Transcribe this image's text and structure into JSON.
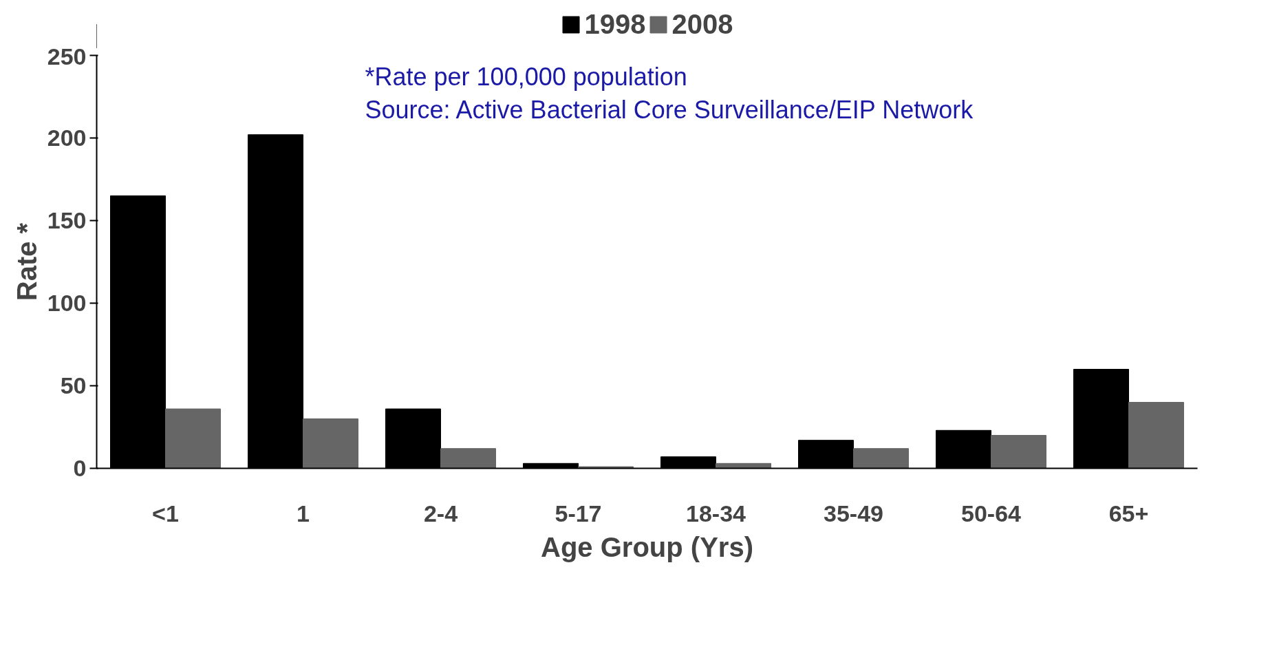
{
  "chart_data": {
    "type": "bar",
    "xlabel": "Age Group (Yrs)",
    "ylabel": "Rate *",
    "categories": [
      "<1",
      "1",
      "2-4",
      "5-17",
      "18-34",
      "35-49",
      "50-64",
      "65+"
    ],
    "series": [
      {
        "name": "1998",
        "color": "#000000",
        "values": [
          165,
          202,
          36,
          3,
          7,
          17,
          23,
          60
        ]
      },
      {
        "name": "2008",
        "color": "#666666",
        "values": [
          36,
          30,
          12,
          1,
          3,
          12,
          20,
          40
        ]
      }
    ],
    "ylim": [
      0,
      250
    ],
    "yticks": [
      0,
      50,
      100,
      150,
      200,
      250
    ],
    "grid": false,
    "legend": "top",
    "annotations": [
      "*Rate per 100,000 population",
      "Source: Active Bacterial Core Surveillance/EIP Network"
    ]
  }
}
